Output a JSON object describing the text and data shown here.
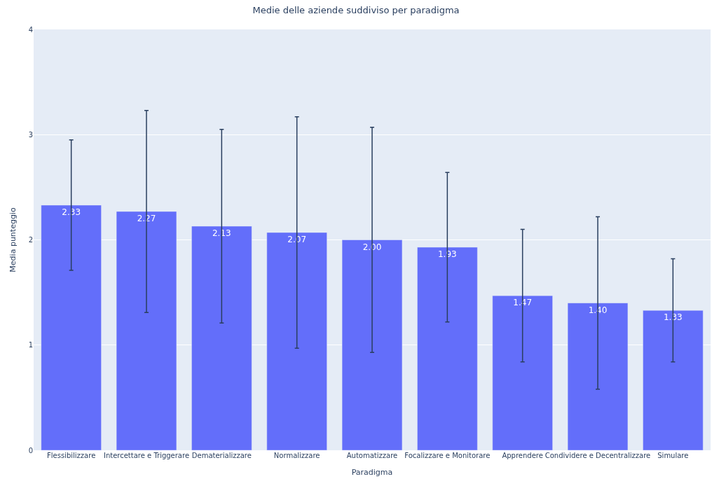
{
  "chart_data": {
    "type": "bar",
    "title": "Medie delle aziende suddiviso per paradigma",
    "xlabel": "Paradigma",
    "ylabel": "Media punteggio",
    "categories": [
      "Flessibilizzare",
      "Intercettare e Triggerare",
      "Dematerializzare",
      "Normalizzare",
      "Automatizzare",
      "Focalizzare e Monitorare",
      "Apprendere",
      "Condividere e Decentralizzare",
      "Simulare"
    ],
    "values": [
      2.33,
      2.27,
      2.13,
      2.07,
      2.0,
      1.93,
      1.47,
      1.4,
      1.33
    ],
    "errors": [
      0.62,
      0.96,
      0.92,
      1.1,
      1.07,
      0.71,
      0.63,
      0.82,
      0.49
    ],
    "value_labels": [
      "2.33",
      "2.27",
      "2.13",
      "2.07",
      "2.00",
      "1.93",
      "1.47",
      "1.40",
      "1.33"
    ],
    "color": "#636efa",
    "ylim": [
      0,
      4
    ],
    "yticks": [
      0,
      1,
      2,
      3,
      4
    ],
    "grid": "y",
    "legend": false
  }
}
